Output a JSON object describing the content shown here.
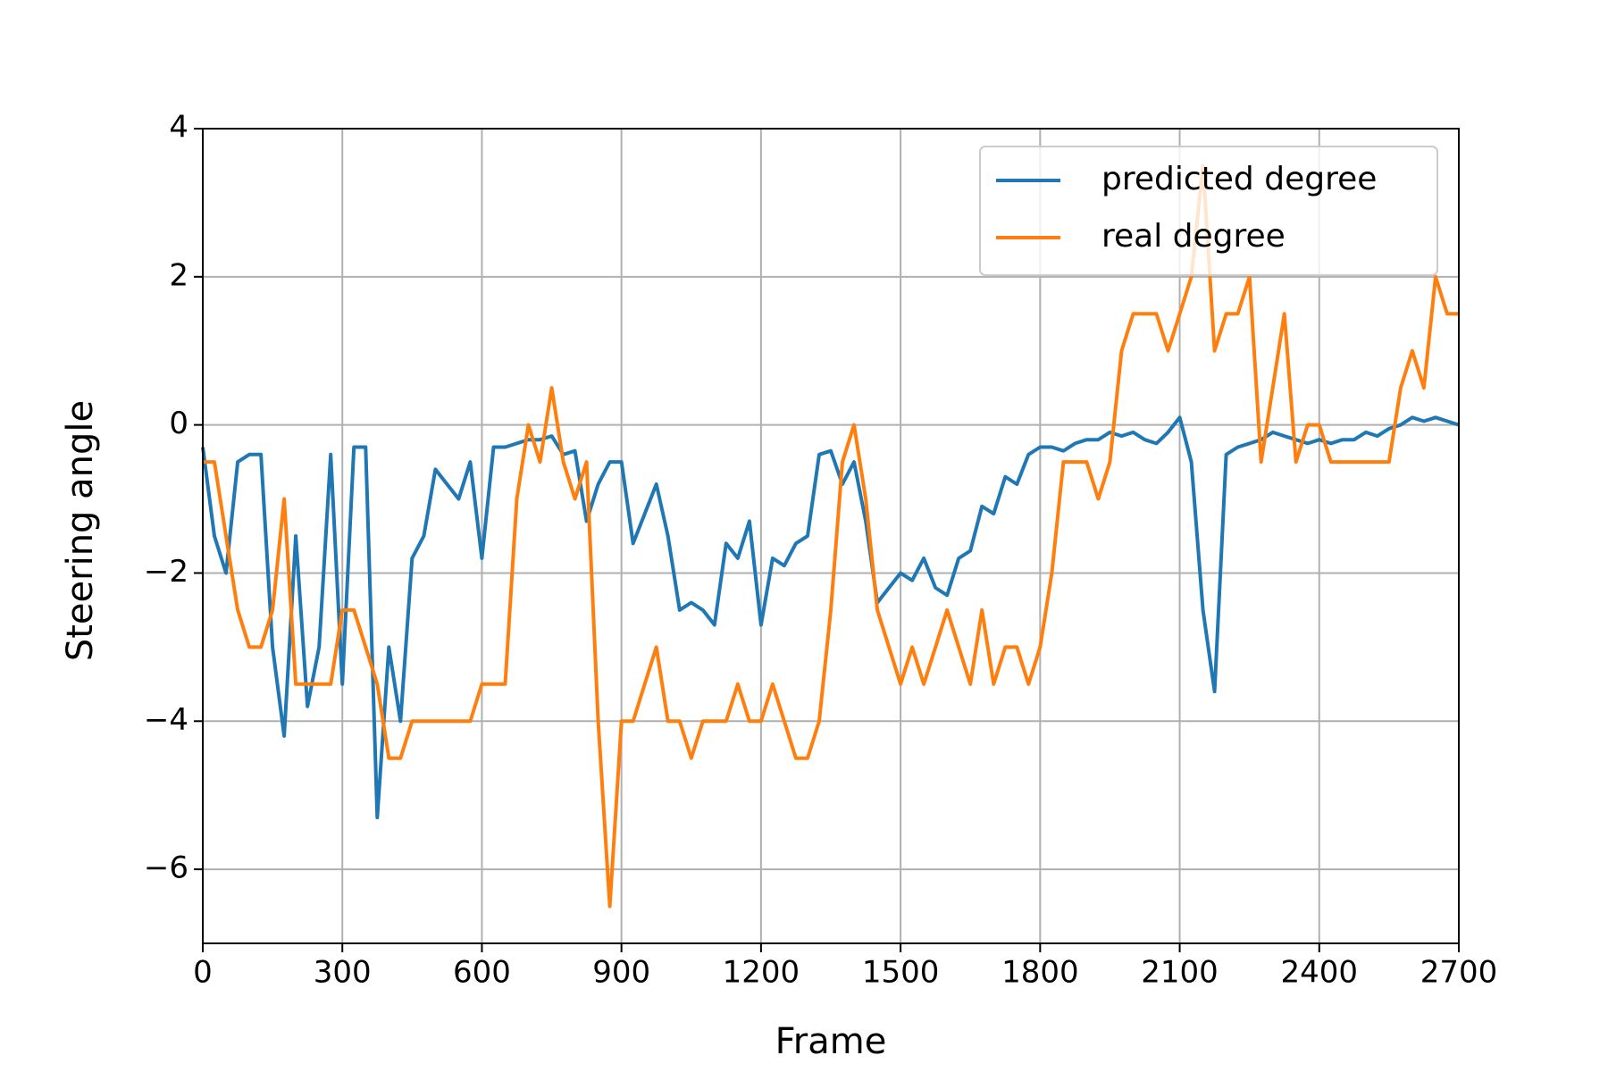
{
  "chart_data": {
    "type": "line",
    "xlabel": "Frame",
    "ylabel": "Steering angle",
    "xlim": [
      0,
      2700
    ],
    "ylim": [
      -7,
      4
    ],
    "xticks": [
      0,
      300,
      600,
      900,
      1200,
      1500,
      1800,
      2100,
      2400,
      2700
    ],
    "yticks": [
      {
        "value": -6,
        "label": "−6"
      },
      {
        "value": -4,
        "label": "−4"
      },
      {
        "value": -2,
        "label": "−2"
      },
      0,
      2,
      4
    ],
    "grid": true,
    "legend": "upper right",
    "x": [
      0,
      25,
      50,
      75,
      100,
      125,
      150,
      175,
      200,
      225,
      250,
      275,
      300,
      325,
      350,
      375,
      400,
      425,
      450,
      475,
      500,
      525,
      550,
      575,
      600,
      625,
      650,
      675,
      700,
      725,
      750,
      775,
      800,
      825,
      850,
      875,
      900,
      925,
      950,
      975,
      1000,
      1025,
      1050,
      1075,
      1100,
      1125,
      1150,
      1175,
      1200,
      1225,
      1250,
      1275,
      1300,
      1325,
      1350,
      1375,
      1400,
      1425,
      1450,
      1475,
      1500,
      1525,
      1550,
      1575,
      1600,
      1625,
      1650,
      1675,
      1700,
      1725,
      1750,
      1775,
      1800,
      1825,
      1850,
      1875,
      1900,
      1925,
      1950,
      1975,
      2000,
      2025,
      2050,
      2075,
      2100,
      2125,
      2150,
      2175,
      2200,
      2225,
      2250,
      2275,
      2300,
      2325,
      2350,
      2375,
      2400,
      2425,
      2450,
      2475,
      2500,
      2525,
      2550,
      2575,
      2600,
      2625,
      2650,
      2675,
      2700
    ],
    "series": [
      {
        "name": "predicted degree",
        "color": "#1f77b4",
        "values": [
          -0.3,
          -1.5,
          -2.0,
          -0.5,
          -0.4,
          -0.4,
          -3.0,
          -4.2,
          -1.5,
          -3.8,
          -3.0,
          -0.4,
          -3.5,
          -0.3,
          -0.3,
          -5.3,
          -3.0,
          -4.0,
          -1.8,
          -1.5,
          -0.6,
          -0.8,
          -1.0,
          -0.5,
          -1.8,
          -0.3,
          -0.3,
          -0.25,
          -0.2,
          -0.2,
          -0.15,
          -0.4,
          -0.35,
          -1.3,
          -0.8,
          -0.5,
          -0.5,
          -1.6,
          -1.2,
          -0.8,
          -1.5,
          -2.5,
          -2.4,
          -2.5,
          -2.7,
          -1.6,
          -1.8,
          -1.3,
          -2.7,
          -1.8,
          -1.9,
          -1.6,
          -1.5,
          -0.4,
          -0.35,
          -0.8,
          -0.5,
          -1.3,
          -2.4,
          -2.2,
          -2.0,
          -2.1,
          -1.8,
          -2.2,
          -2.3,
          -1.8,
          -1.7,
          -1.1,
          -1.2,
          -0.7,
          -0.8,
          -0.4,
          -0.3,
          -0.3,
          -0.35,
          -0.25,
          -0.2,
          -0.2,
          -0.1,
          -0.15,
          -0.1,
          -0.2,
          -0.25,
          -0.1,
          0.1,
          -0.5,
          -2.5,
          -3.6,
          -0.4,
          -0.3,
          -0.25,
          -0.2,
          -0.1,
          -0.15,
          -0.2,
          -0.25,
          -0.2,
          -0.25,
          -0.2,
          -0.2,
          -0.1,
          -0.15,
          -0.05,
          0.0,
          0.1,
          0.05,
          0.1,
          0.05,
          0.0
        ]
      },
      {
        "name": "real degree",
        "color": "#ff7f0e",
        "values": [
          -0.5,
          -0.5,
          -1.5,
          -2.5,
          -3.0,
          -3.0,
          -2.5,
          -1.0,
          -3.5,
          -3.5,
          -3.5,
          -3.5,
          -2.5,
          -2.5,
          -3.0,
          -3.5,
          -4.5,
          -4.5,
          -4.0,
          -4.0,
          -4.0,
          -4.0,
          -4.0,
          -4.0,
          -3.5,
          -3.5,
          -3.5,
          -1.0,
          0.0,
          -0.5,
          0.5,
          -0.5,
          -1.0,
          -0.5,
          -4.0,
          -6.5,
          -4.0,
          -4.0,
          -3.5,
          -3.0,
          -4.0,
          -4.0,
          -4.5,
          -4.0,
          -4.0,
          -4.0,
          -3.5,
          -4.0,
          -4.0,
          -3.5,
          -4.0,
          -4.5,
          -4.5,
          -4.0,
          -2.5,
          -0.5,
          0.0,
          -1.0,
          -2.5,
          -3.0,
          -3.5,
          -3.0,
          -3.5,
          -3.0,
          -2.5,
          -3.0,
          -3.5,
          -2.5,
          -3.5,
          -3.0,
          -3.0,
          -3.5,
          -3.0,
          -2.0,
          -0.5,
          -0.5,
          -0.5,
          -1.0,
          -0.5,
          1.0,
          1.5,
          1.5,
          1.5,
          1.0,
          1.5,
          2.0,
          3.5,
          1.0,
          1.5,
          1.5,
          2.0,
          -0.5,
          0.5,
          1.5,
          -0.5,
          0.0,
          0.0,
          -0.5,
          -0.5,
          -0.5,
          -0.5,
          -0.5,
          -0.5,
          0.5,
          1.0,
          0.5,
          2.0,
          1.5,
          1.5
        ]
      }
    ]
  }
}
